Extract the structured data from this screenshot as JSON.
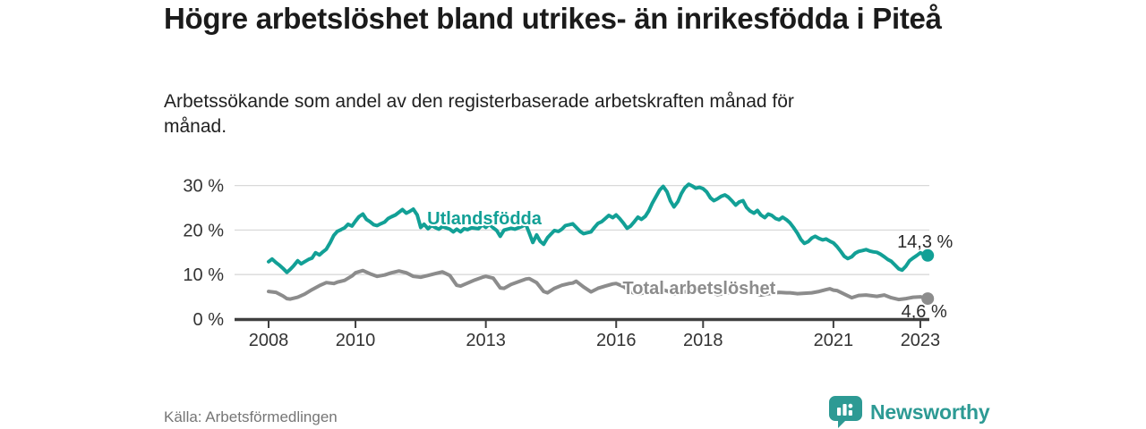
{
  "header": {
    "title": "Högre arbetslöshet bland utrikes- än inrikesfödda i Piteå",
    "subtitle": "Arbetssökande som andel av den registerbaserade arbetskraften månad för månad."
  },
  "footer": {
    "source": "Källa: Arbetsförmedlingen",
    "brand": "Newsworthy"
  },
  "colors": {
    "accent_teal": "#12a096",
    "series_gray": "#8c8c8c",
    "logo_teal": "#2d9a94",
    "grid": "#d9d9d9",
    "axis": "#3f3f3f",
    "axis_text": "#333333",
    "value_text": "#2b2b2b"
  },
  "chart_data": {
    "type": "line",
    "title": "Högre arbetslöshet bland utrikes- än inrikesfödda i Piteå",
    "subtitle": "Arbetssökande som andel av den registerbaserade arbetskraften månad för månad.",
    "source": "Källa: Arbetsförmedlingen",
    "grid": "horizontal",
    "legend_position": "inline-labels",
    "x_axis": {
      "ticks": [
        2008,
        2010,
        2013,
        2016,
        2018,
        2021,
        2023
      ],
      "range": [
        2007.2,
        2023.25
      ]
    },
    "y_axis": {
      "ticks": [
        0,
        10,
        20,
        30
      ],
      "labels": [
        "0 %",
        "10 %",
        "20 %",
        "30 %"
      ],
      "unit": "%",
      "range": [
        0,
        31.5
      ]
    },
    "series": [
      {
        "name": "Utlandsfödda",
        "color": "#12a096",
        "line_width": 4,
        "end_label": "14,3 %",
        "end_value": 14.3,
        "end_label_offset": [
          -3,
          -9
        ],
        "label_pos": {
          "x": 2011.65,
          "y": 21.3,
          "anchor": "start"
        },
        "points": [
          [
            2008.0,
            12.9
          ],
          [
            2008.08,
            13.5
          ],
          [
            2008.17,
            12.7
          ],
          [
            2008.25,
            12.1
          ],
          [
            2008.33,
            11.4
          ],
          [
            2008.42,
            10.5
          ],
          [
            2008.5,
            11.2
          ],
          [
            2008.58,
            12.0
          ],
          [
            2008.67,
            13.1
          ],
          [
            2008.75,
            12.4
          ],
          [
            2008.83,
            12.9
          ],
          [
            2008.92,
            13.4
          ],
          [
            2009.0,
            13.7
          ],
          [
            2009.08,
            14.9
          ],
          [
            2009.17,
            14.4
          ],
          [
            2009.25,
            15.1
          ],
          [
            2009.33,
            15.7
          ],
          [
            2009.42,
            17.2
          ],
          [
            2009.5,
            18.8
          ],
          [
            2009.58,
            19.7
          ],
          [
            2009.67,
            20.1
          ],
          [
            2009.75,
            20.5
          ],
          [
            2009.83,
            21.3
          ],
          [
            2009.92,
            20.9
          ],
          [
            2010.0,
            22.0
          ],
          [
            2010.08,
            23.0
          ],
          [
            2010.17,
            23.6
          ],
          [
            2010.25,
            22.4
          ],
          [
            2010.33,
            21.9
          ],
          [
            2010.42,
            21.2
          ],
          [
            2010.5,
            21.0
          ],
          [
            2010.58,
            21.4
          ],
          [
            2010.67,
            21.8
          ],
          [
            2010.75,
            22.6
          ],
          [
            2010.83,
            23.0
          ],
          [
            2010.92,
            23.4
          ],
          [
            2011.0,
            24.0
          ],
          [
            2011.08,
            24.6
          ],
          [
            2011.17,
            23.8
          ],
          [
            2011.25,
            24.2
          ],
          [
            2011.33,
            24.7
          ],
          [
            2011.42,
            23.4
          ],
          [
            2011.5,
            20.6
          ],
          [
            2011.58,
            21.3
          ],
          [
            2011.67,
            20.3
          ],
          [
            2011.75,
            21.0
          ],
          [
            2011.83,
            20.6
          ],
          [
            2011.92,
            20.2
          ],
          [
            2012.0,
            20.8
          ],
          [
            2012.08,
            20.5
          ],
          [
            2012.17,
            20.2
          ],
          [
            2012.25,
            19.6
          ],
          [
            2012.33,
            20.2
          ],
          [
            2012.42,
            19.6
          ],
          [
            2012.5,
            20.3
          ],
          [
            2012.58,
            20.1
          ],
          [
            2012.67,
            20.5
          ],
          [
            2012.75,
            20.4
          ],
          [
            2012.83,
            20.3
          ],
          [
            2012.92,
            21.2
          ],
          [
            2013.0,
            20.6
          ],
          [
            2013.08,
            21.3
          ],
          [
            2013.17,
            20.5
          ],
          [
            2013.25,
            19.9
          ],
          [
            2013.33,
            18.6
          ],
          [
            2013.42,
            20.0
          ],
          [
            2013.5,
            20.2
          ],
          [
            2013.58,
            20.4
          ],
          [
            2013.67,
            20.2
          ],
          [
            2013.75,
            20.5
          ],
          [
            2013.83,
            20.8
          ],
          [
            2013.92,
            21.3
          ],
          [
            2014.0,
            19.3
          ],
          [
            2014.08,
            17.2
          ],
          [
            2014.17,
            18.9
          ],
          [
            2014.25,
            17.5
          ],
          [
            2014.33,
            16.8
          ],
          [
            2014.42,
            18.3
          ],
          [
            2014.5,
            19.1
          ],
          [
            2014.58,
            19.9
          ],
          [
            2014.67,
            19.7
          ],
          [
            2014.75,
            20.2
          ],
          [
            2014.83,
            21.0
          ],
          [
            2014.92,
            21.2
          ],
          [
            2015.0,
            21.4
          ],
          [
            2015.08,
            20.6
          ],
          [
            2015.17,
            19.7
          ],
          [
            2015.25,
            19.2
          ],
          [
            2015.33,
            19.4
          ],
          [
            2015.42,
            19.6
          ],
          [
            2015.5,
            20.6
          ],
          [
            2015.58,
            21.5
          ],
          [
            2015.67,
            21.9
          ],
          [
            2015.75,
            22.6
          ],
          [
            2015.83,
            23.3
          ],
          [
            2015.92,
            22.8
          ],
          [
            2016.0,
            23.4
          ],
          [
            2016.08,
            22.6
          ],
          [
            2016.17,
            21.5
          ],
          [
            2016.25,
            20.4
          ],
          [
            2016.33,
            20.9
          ],
          [
            2016.42,
            21.9
          ],
          [
            2016.5,
            22.9
          ],
          [
            2016.58,
            22.4
          ],
          [
            2016.67,
            23.1
          ],
          [
            2016.75,
            24.3
          ],
          [
            2016.83,
            26.0
          ],
          [
            2016.92,
            27.6
          ],
          [
            2017.0,
            29.0
          ],
          [
            2017.08,
            29.8
          ],
          [
            2017.17,
            28.6
          ],
          [
            2017.25,
            26.5
          ],
          [
            2017.33,
            25.2
          ],
          [
            2017.42,
            26.4
          ],
          [
            2017.5,
            28.2
          ],
          [
            2017.58,
            29.5
          ],
          [
            2017.67,
            30.3
          ],
          [
            2017.75,
            29.9
          ],
          [
            2017.83,
            29.4
          ],
          [
            2017.92,
            29.6
          ],
          [
            2018.0,
            29.3
          ],
          [
            2018.08,
            28.6
          ],
          [
            2018.17,
            27.2
          ],
          [
            2018.25,
            26.6
          ],
          [
            2018.33,
            27.0
          ],
          [
            2018.42,
            27.6
          ],
          [
            2018.5,
            27.9
          ],
          [
            2018.58,
            27.4
          ],
          [
            2018.67,
            26.5
          ],
          [
            2018.75,
            25.6
          ],
          [
            2018.83,
            26.3
          ],
          [
            2018.92,
            26.6
          ],
          [
            2019.0,
            25.1
          ],
          [
            2019.08,
            24.3
          ],
          [
            2019.17,
            23.8
          ],
          [
            2019.25,
            24.4
          ],
          [
            2019.33,
            23.4
          ],
          [
            2019.42,
            22.8
          ],
          [
            2019.5,
            23.6
          ],
          [
            2019.58,
            23.3
          ],
          [
            2019.67,
            22.6
          ],
          [
            2019.75,
            22.3
          ],
          [
            2019.83,
            22.9
          ],
          [
            2019.92,
            22.3
          ],
          [
            2020.0,
            21.6
          ],
          [
            2020.08,
            20.6
          ],
          [
            2020.17,
            19.3
          ],
          [
            2020.25,
            17.9
          ],
          [
            2020.33,
            17.0
          ],
          [
            2020.42,
            17.4
          ],
          [
            2020.5,
            18.2
          ],
          [
            2020.58,
            18.6
          ],
          [
            2020.67,
            18.1
          ],
          [
            2020.75,
            17.8
          ],
          [
            2020.83,
            18.0
          ],
          [
            2020.92,
            17.5
          ],
          [
            2021.0,
            17.1
          ],
          [
            2021.08,
            16.3
          ],
          [
            2021.17,
            15.2
          ],
          [
            2021.25,
            14.1
          ],
          [
            2021.33,
            13.6
          ],
          [
            2021.42,
            14.0
          ],
          [
            2021.5,
            14.8
          ],
          [
            2021.58,
            15.2
          ],
          [
            2021.67,
            15.4
          ],
          [
            2021.75,
            15.6
          ],
          [
            2021.83,
            15.3
          ],
          [
            2021.92,
            15.1
          ],
          [
            2022.0,
            15.0
          ],
          [
            2022.08,
            14.6
          ],
          [
            2022.17,
            14.0
          ],
          [
            2022.25,
            13.4
          ],
          [
            2022.33,
            13.0
          ],
          [
            2022.42,
            12.1
          ],
          [
            2022.5,
            11.3
          ],
          [
            2022.58,
            11.0
          ],
          [
            2022.67,
            11.9
          ],
          [
            2022.75,
            13.1
          ],
          [
            2022.83,
            13.7
          ],
          [
            2022.92,
            14.3
          ],
          [
            2023.0,
            14.9
          ],
          [
            2023.08,
            14.5
          ],
          [
            2023.17,
            14.3
          ]
        ]
      },
      {
        "name": "Total arbetslöshet",
        "color": "#8c8c8c",
        "line_width": 4,
        "end_label": "4,6 %",
        "end_value": 4.6,
        "end_label_offset": [
          -4,
          21
        ],
        "label_pos": {
          "x": 2016.15,
          "y": 5.6,
          "anchor": "start"
        },
        "points": [
          [
            2008.0,
            6.2
          ],
          [
            2008.17,
            6.0
          ],
          [
            2008.33,
            5.2
          ],
          [
            2008.42,
            4.6
          ],
          [
            2008.5,
            4.5
          ],
          [
            2008.67,
            4.9
          ],
          [
            2008.83,
            5.6
          ],
          [
            2009.0,
            6.6
          ],
          [
            2009.17,
            7.5
          ],
          [
            2009.33,
            8.2
          ],
          [
            2009.5,
            8.0
          ],
          [
            2009.58,
            8.3
          ],
          [
            2009.75,
            8.7
          ],
          [
            2009.92,
            9.7
          ],
          [
            2010.0,
            10.4
          ],
          [
            2010.17,
            10.9
          ],
          [
            2010.33,
            10.2
          ],
          [
            2010.5,
            9.6
          ],
          [
            2010.67,
            9.9
          ],
          [
            2010.83,
            10.4
          ],
          [
            2011.0,
            10.8
          ],
          [
            2011.17,
            10.4
          ],
          [
            2011.33,
            9.6
          ],
          [
            2011.5,
            9.4
          ],
          [
            2011.67,
            9.8
          ],
          [
            2011.83,
            10.2
          ],
          [
            2012.0,
            10.6
          ],
          [
            2012.17,
            9.8
          ],
          [
            2012.33,
            7.6
          ],
          [
            2012.42,
            7.4
          ],
          [
            2012.58,
            8.1
          ],
          [
            2012.75,
            8.8
          ],
          [
            2012.92,
            9.4
          ],
          [
            2013.0,
            9.6
          ],
          [
            2013.17,
            9.2
          ],
          [
            2013.33,
            7.0
          ],
          [
            2013.42,
            6.9
          ],
          [
            2013.58,
            7.8
          ],
          [
            2013.75,
            8.4
          ],
          [
            2013.92,
            9.0
          ],
          [
            2014.0,
            9.1
          ],
          [
            2014.17,
            8.2
          ],
          [
            2014.33,
            6.2
          ],
          [
            2014.42,
            5.9
          ],
          [
            2014.58,
            6.9
          ],
          [
            2014.75,
            7.6
          ],
          [
            2014.92,
            8.0
          ],
          [
            2015.0,
            8.1
          ],
          [
            2015.08,
            8.5
          ],
          [
            2015.25,
            7.2
          ],
          [
            2015.42,
            6.1
          ],
          [
            2015.58,
            6.9
          ],
          [
            2015.75,
            7.4
          ],
          [
            2015.92,
            7.9
          ],
          [
            2016.0,
            8.0
          ],
          [
            2016.17,
            7.3
          ],
          [
            2016.33,
            6.1
          ],
          [
            2016.5,
            5.6
          ],
          [
            2016.67,
            6.0
          ],
          [
            2016.83,
            6.4
          ],
          [
            2017.0,
            6.8
          ],
          [
            2017.17,
            6.3
          ],
          [
            2017.33,
            5.6
          ],
          [
            2017.5,
            6.0
          ],
          [
            2017.75,
            6.4
          ],
          [
            2017.92,
            6.6
          ],
          [
            2018.0,
            6.6
          ],
          [
            2018.17,
            6.1
          ],
          [
            2018.33,
            5.5
          ],
          [
            2018.5,
            5.8
          ],
          [
            2018.75,
            6.1
          ],
          [
            2018.92,
            6.3
          ],
          [
            2019.0,
            6.4
          ],
          [
            2019.17,
            5.9
          ],
          [
            2019.33,
            5.4
          ],
          [
            2019.5,
            5.7
          ],
          [
            2019.75,
            6.0
          ],
          [
            2019.92,
            5.9
          ],
          [
            2020.0,
            5.9
          ],
          [
            2020.17,
            5.7
          ],
          [
            2020.33,
            5.8
          ],
          [
            2020.5,
            5.9
          ],
          [
            2020.67,
            6.2
          ],
          [
            2020.83,
            6.6
          ],
          [
            2020.92,
            6.8
          ],
          [
            2021.0,
            6.5
          ],
          [
            2021.08,
            6.4
          ],
          [
            2021.25,
            5.6
          ],
          [
            2021.42,
            4.8
          ],
          [
            2021.58,
            5.3
          ],
          [
            2021.75,
            5.4
          ],
          [
            2021.92,
            5.2
          ],
          [
            2022.0,
            5.1
          ],
          [
            2022.17,
            5.4
          ],
          [
            2022.33,
            4.8
          ],
          [
            2022.5,
            4.4
          ],
          [
            2022.67,
            4.6
          ],
          [
            2022.83,
            4.9
          ],
          [
            2023.0,
            5.0
          ],
          [
            2023.08,
            4.8
          ],
          [
            2023.17,
            4.6
          ]
        ]
      }
    ]
  }
}
